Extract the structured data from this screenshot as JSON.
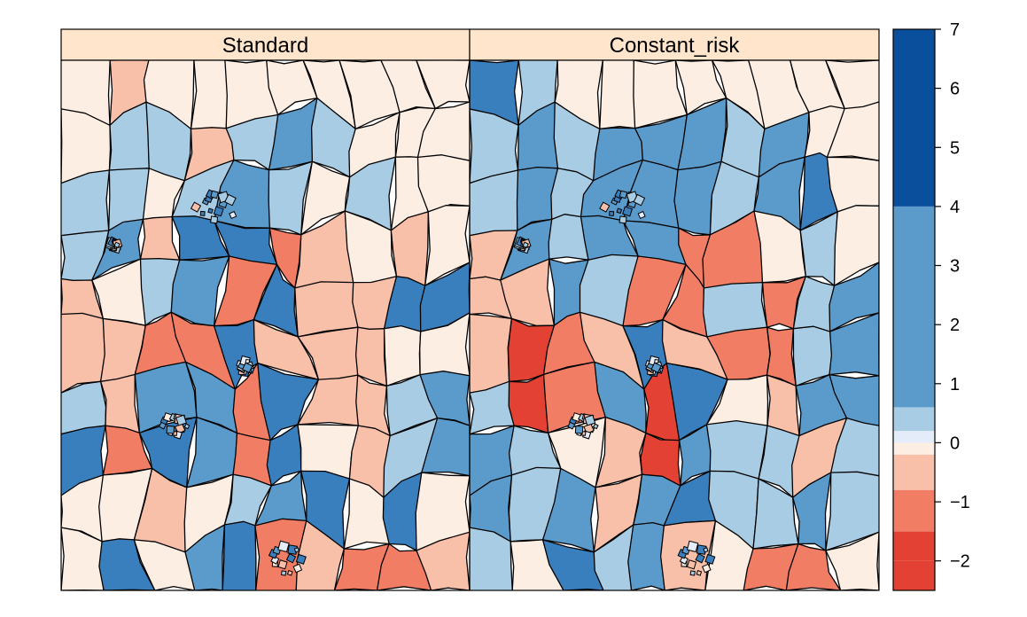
{
  "panels": [
    {
      "title": "Standard",
      "regions": [
        [
          0,
          0,
          "w"
        ],
        [
          1,
          0,
          "p"
        ],
        [
          2,
          0,
          "w"
        ],
        [
          3,
          0,
          "w"
        ],
        [
          4,
          0,
          "w"
        ],
        [
          5,
          0,
          "w"
        ],
        [
          6,
          0,
          "w"
        ],
        [
          7,
          0,
          "w"
        ],
        [
          8,
          0,
          "w"
        ],
        [
          9,
          0,
          "w"
        ],
        [
          0,
          1,
          "w"
        ],
        [
          1,
          1,
          "l"
        ],
        [
          2,
          1,
          "l"
        ],
        [
          3,
          1,
          "p"
        ],
        [
          4,
          1,
          "l"
        ],
        [
          5,
          1,
          "m"
        ],
        [
          6,
          1,
          "l"
        ],
        [
          7,
          1,
          "w"
        ],
        [
          8,
          1,
          "w"
        ],
        [
          9,
          1,
          "w"
        ],
        [
          0,
          2,
          "l"
        ],
        [
          1,
          2,
          "l"
        ],
        [
          2,
          2,
          "w"
        ],
        [
          3,
          2,
          "l"
        ],
        [
          4,
          2,
          "m"
        ],
        [
          5,
          2,
          "l"
        ],
        [
          6,
          2,
          "w"
        ],
        [
          7,
          2,
          "l"
        ],
        [
          8,
          2,
          "w"
        ],
        [
          9,
          2,
          "w"
        ],
        [
          0,
          3,
          "l"
        ],
        [
          1,
          3,
          "m"
        ],
        [
          2,
          3,
          "p"
        ],
        [
          3,
          3,
          "b"
        ],
        [
          4,
          3,
          "b"
        ],
        [
          5,
          3,
          "o"
        ],
        [
          6,
          3,
          "p"
        ],
        [
          7,
          3,
          "w"
        ],
        [
          8,
          3,
          "p"
        ],
        [
          9,
          3,
          "w"
        ],
        [
          0,
          4,
          "p"
        ],
        [
          1,
          4,
          "w"
        ],
        [
          2,
          4,
          "l"
        ],
        [
          3,
          4,
          "m"
        ],
        [
          4,
          4,
          "o"
        ],
        [
          5,
          4,
          "b"
        ],
        [
          6,
          4,
          "p"
        ],
        [
          7,
          4,
          "p"
        ],
        [
          8,
          4,
          "b"
        ],
        [
          9,
          4,
          "b"
        ],
        [
          0,
          5,
          "p"
        ],
        [
          1,
          5,
          "p"
        ],
        [
          2,
          5,
          "o"
        ],
        [
          3,
          5,
          "o"
        ],
        [
          4,
          5,
          "b"
        ],
        [
          5,
          5,
          "p"
        ],
        [
          6,
          5,
          "p"
        ],
        [
          7,
          5,
          "p"
        ],
        [
          8,
          5,
          "w"
        ],
        [
          9,
          5,
          "w"
        ],
        [
          0,
          6,
          "l"
        ],
        [
          1,
          6,
          "p"
        ],
        [
          2,
          6,
          "m"
        ],
        [
          3,
          6,
          "m"
        ],
        [
          4,
          6,
          "o"
        ],
        [
          5,
          6,
          "b"
        ],
        [
          6,
          6,
          "p"
        ],
        [
          7,
          6,
          "p"
        ],
        [
          8,
          6,
          "l"
        ],
        [
          9,
          6,
          "m"
        ],
        [
          0,
          7,
          "b"
        ],
        [
          1,
          7,
          "o"
        ],
        [
          2,
          7,
          "b"
        ],
        [
          3,
          7,
          "m"
        ],
        [
          4,
          7,
          "o"
        ],
        [
          5,
          7,
          "b"
        ],
        [
          6,
          7,
          "w"
        ],
        [
          7,
          7,
          "p"
        ],
        [
          8,
          7,
          "l"
        ],
        [
          9,
          7,
          "m"
        ],
        [
          0,
          8,
          "w"
        ],
        [
          1,
          8,
          "w"
        ],
        [
          2,
          8,
          "p"
        ],
        [
          3,
          8,
          "w"
        ],
        [
          4,
          8,
          "l"
        ],
        [
          5,
          8,
          "m"
        ],
        [
          6,
          8,
          "b"
        ],
        [
          7,
          8,
          "w"
        ],
        [
          8,
          8,
          "b"
        ],
        [
          9,
          8,
          "w"
        ],
        [
          0,
          9,
          "w"
        ],
        [
          1,
          9,
          "b"
        ],
        [
          2,
          9,
          "w"
        ],
        [
          3,
          9,
          "m"
        ],
        [
          4,
          9,
          "b"
        ],
        [
          5,
          9,
          "o"
        ],
        [
          6,
          9,
          "p"
        ],
        [
          7,
          9,
          "o"
        ],
        [
          8,
          9,
          "o"
        ],
        [
          9,
          9,
          "p"
        ]
      ]
    },
    {
      "title": "Constant_risk",
      "regions": [
        [
          0,
          0,
          "b"
        ],
        [
          1,
          0,
          "l"
        ],
        [
          2,
          0,
          "w"
        ],
        [
          3,
          0,
          "w"
        ],
        [
          4,
          0,
          "w"
        ],
        [
          5,
          0,
          "w"
        ],
        [
          6,
          0,
          "w"
        ],
        [
          7,
          0,
          "w"
        ],
        [
          8,
          0,
          "w"
        ],
        [
          9,
          0,
          "w"
        ],
        [
          0,
          1,
          "l"
        ],
        [
          1,
          1,
          "m"
        ],
        [
          2,
          1,
          "l"
        ],
        [
          3,
          1,
          "m"
        ],
        [
          4,
          1,
          "m"
        ],
        [
          5,
          1,
          "m"
        ],
        [
          6,
          1,
          "l"
        ],
        [
          7,
          1,
          "m"
        ],
        [
          8,
          1,
          "w"
        ],
        [
          9,
          1,
          "w"
        ],
        [
          0,
          2,
          "l"
        ],
        [
          1,
          2,
          "m"
        ],
        [
          2,
          2,
          "l"
        ],
        [
          3,
          2,
          "m"
        ],
        [
          4,
          2,
          "m"
        ],
        [
          5,
          2,
          "m"
        ],
        [
          6,
          2,
          "l"
        ],
        [
          7,
          2,
          "m"
        ],
        [
          8,
          2,
          "b"
        ],
        [
          9,
          2,
          "w"
        ],
        [
          0,
          3,
          "p"
        ],
        [
          1,
          3,
          "m"
        ],
        [
          2,
          3,
          "l"
        ],
        [
          3,
          3,
          "m"
        ],
        [
          4,
          3,
          "m"
        ],
        [
          5,
          3,
          "o"
        ],
        [
          6,
          3,
          "o"
        ],
        [
          7,
          3,
          "w"
        ],
        [
          8,
          3,
          "l"
        ],
        [
          9,
          3,
          "w"
        ],
        [
          0,
          4,
          "p"
        ],
        [
          1,
          4,
          "p"
        ],
        [
          2,
          4,
          "m"
        ],
        [
          3,
          4,
          "l"
        ],
        [
          4,
          4,
          "o"
        ],
        [
          5,
          4,
          "o"
        ],
        [
          6,
          4,
          "l"
        ],
        [
          7,
          4,
          "o"
        ],
        [
          8,
          4,
          "l"
        ],
        [
          9,
          4,
          "m"
        ],
        [
          0,
          5,
          "p"
        ],
        [
          1,
          5,
          "r"
        ],
        [
          2,
          5,
          "o"
        ],
        [
          3,
          5,
          "p"
        ],
        [
          4,
          5,
          "b"
        ],
        [
          5,
          5,
          "p"
        ],
        [
          6,
          5,
          "o"
        ],
        [
          7,
          5,
          "o"
        ],
        [
          8,
          5,
          "l"
        ],
        [
          9,
          5,
          "m"
        ],
        [
          0,
          6,
          "l"
        ],
        [
          1,
          6,
          "r"
        ],
        [
          2,
          6,
          "o"
        ],
        [
          3,
          6,
          "m"
        ],
        [
          4,
          6,
          "r"
        ],
        [
          5,
          6,
          "b"
        ],
        [
          6,
          6,
          "w"
        ],
        [
          7,
          6,
          "p"
        ],
        [
          8,
          6,
          "m"
        ],
        [
          9,
          6,
          "m"
        ],
        [
          0,
          7,
          "m"
        ],
        [
          1,
          7,
          "l"
        ],
        [
          2,
          7,
          "w"
        ],
        [
          3,
          7,
          "p"
        ],
        [
          4,
          7,
          "r"
        ],
        [
          5,
          7,
          "m"
        ],
        [
          6,
          7,
          "l"
        ],
        [
          7,
          7,
          "l"
        ],
        [
          8,
          7,
          "p"
        ],
        [
          9,
          7,
          "l"
        ],
        [
          0,
          8,
          "m"
        ],
        [
          1,
          8,
          "l"
        ],
        [
          2,
          8,
          "m"
        ],
        [
          3,
          8,
          "p"
        ],
        [
          4,
          8,
          "m"
        ],
        [
          5,
          8,
          "b"
        ],
        [
          6,
          8,
          "l"
        ],
        [
          7,
          8,
          "l"
        ],
        [
          8,
          8,
          "m"
        ],
        [
          9,
          8,
          "l"
        ],
        [
          0,
          9,
          "l"
        ],
        [
          1,
          9,
          "w"
        ],
        [
          2,
          9,
          "b"
        ],
        [
          3,
          9,
          "l"
        ],
        [
          4,
          9,
          "m"
        ],
        [
          5,
          9,
          "p"
        ],
        [
          6,
          9,
          "w"
        ],
        [
          7,
          9,
          "o"
        ],
        [
          8,
          9,
          "o"
        ],
        [
          9,
          9,
          "w"
        ]
      ]
    }
  ],
  "palette": {
    "r": "#e34133",
    "o": "#f07d64",
    "p": "#f8bfa9",
    "w": "#fdeee4",
    "x": "#e3ecf8",
    "l": "#a8cce4",
    "m": "#5b9bcb",
    "b": "#3a7fbd"
  },
  "legend": {
    "bands": [
      {
        "from": -2.5,
        "to": -2,
        "color": "#e34133"
      },
      {
        "from": -2,
        "to": -1.5,
        "color": "#e34133"
      },
      {
        "from": -1.5,
        "to": -0.8,
        "color": "#f07d64"
      },
      {
        "from": -0.8,
        "to": -0.2,
        "color": "#f8bfa9"
      },
      {
        "from": -0.2,
        "to": 0,
        "color": "#fdeee4"
      },
      {
        "from": 0,
        "to": 0.2,
        "color": "#e3ecf8"
      },
      {
        "from": 0.2,
        "to": 0.6,
        "color": "#a8cce4"
      },
      {
        "from": 0.6,
        "to": 4,
        "color": "#5b9bcb"
      },
      {
        "from": 4,
        "to": 7,
        "color": "#0a4f9c"
      }
    ],
    "min": -2.5,
    "max": 7,
    "ticks": [
      "7",
      "6",
      "5",
      "4",
      "3",
      "2",
      "1",
      "0",
      "−1",
      "−2"
    ],
    "tick_values": [
      7,
      6,
      5,
      4,
      3,
      2,
      1,
      0,
      -1,
      -2
    ]
  }
}
